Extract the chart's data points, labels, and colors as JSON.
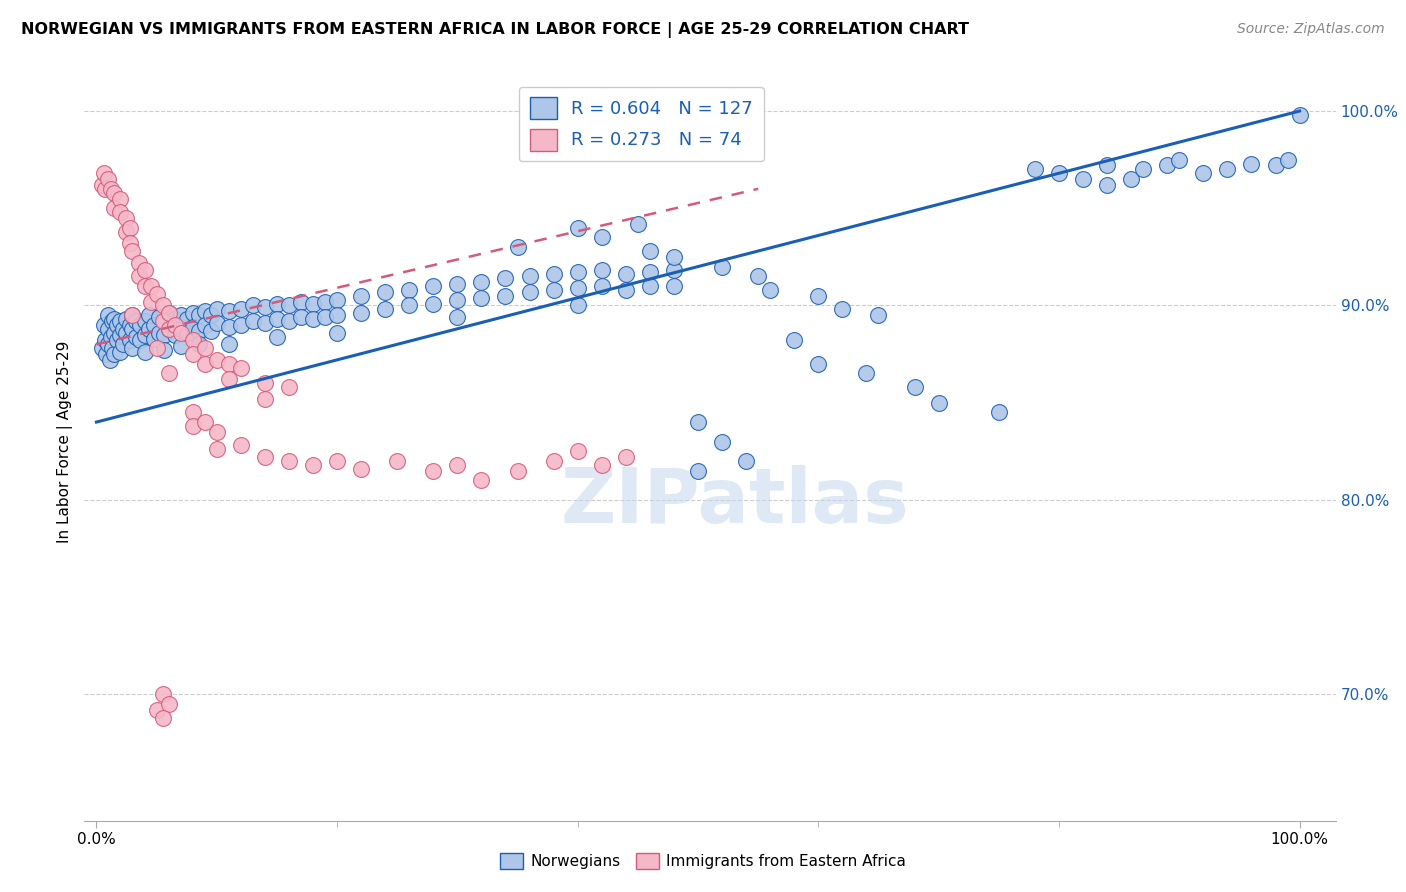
{
  "title": "NORWEGIAN VS IMMIGRANTS FROM EASTERN AFRICA IN LABOR FORCE | AGE 25-29 CORRELATION CHART",
  "source": "Source: ZipAtlas.com",
  "ylabel": "In Labor Force | Age 25-29",
  "xlim": [
    -0.01,
    1.03
  ],
  "ylim": [
    0.635,
    1.025
  ],
  "yticks": [
    0.7,
    0.8,
    0.9,
    1.0
  ],
  "ytick_labels": [
    "70.0%",
    "80.0%",
    "90.0%",
    "100.0%"
  ],
  "xtick_labels": [
    "0.0%",
    "100.0%"
  ],
  "legend_R_blue": "0.604",
  "legend_N_blue": "127",
  "legend_R_pink": "0.273",
  "legend_N_pink": "74",
  "blue_color": "#aec6e8",
  "pink_color": "#f5b8c8",
  "line_blue": "#1a5fb4",
  "line_pink": "#d45a7a",
  "blue_line_x": [
    0.0,
    1.0
  ],
  "blue_line_y": [
    0.84,
    1.0
  ],
  "pink_line_x": [
    0.0,
    0.55
  ],
  "pink_line_y": [
    0.88,
    0.96
  ],
  "blue_scatter": [
    [
      0.005,
      0.878
    ],
    [
      0.006,
      0.89
    ],
    [
      0.007,
      0.882
    ],
    [
      0.008,
      0.875
    ],
    [
      0.01,
      0.88
    ],
    [
      0.01,
      0.888
    ],
    [
      0.01,
      0.895
    ],
    [
      0.011,
      0.872
    ],
    [
      0.012,
      0.884
    ],
    [
      0.013,
      0.892
    ],
    [
      0.013,
      0.878
    ],
    [
      0.015,
      0.886
    ],
    [
      0.015,
      0.893
    ],
    [
      0.015,
      0.875
    ],
    [
      0.017,
      0.882
    ],
    [
      0.017,
      0.89
    ],
    [
      0.02,
      0.885
    ],
    [
      0.02,
      0.892
    ],
    [
      0.02,
      0.876
    ],
    [
      0.022,
      0.888
    ],
    [
      0.022,
      0.88
    ],
    [
      0.025,
      0.886
    ],
    [
      0.025,
      0.893
    ],
    [
      0.028,
      0.89
    ],
    [
      0.028,
      0.882
    ],
    [
      0.03,
      0.888
    ],
    [
      0.03,
      0.895
    ],
    [
      0.03,
      0.878
    ],
    [
      0.033,
      0.892
    ],
    [
      0.033,
      0.884
    ],
    [
      0.036,
      0.89
    ],
    [
      0.036,
      0.882
    ],
    [
      0.04,
      0.892
    ],
    [
      0.04,
      0.885
    ],
    [
      0.04,
      0.876
    ],
    [
      0.044,
      0.888
    ],
    [
      0.044,
      0.895
    ],
    [
      0.048,
      0.89
    ],
    [
      0.048,
      0.883
    ],
    [
      0.052,
      0.894
    ],
    [
      0.052,
      0.886
    ],
    [
      0.056,
      0.892
    ],
    [
      0.056,
      0.885
    ],
    [
      0.056,
      0.877
    ],
    [
      0.06,
      0.896
    ],
    [
      0.06,
      0.888
    ],
    [
      0.065,
      0.893
    ],
    [
      0.065,
      0.885
    ],
    [
      0.07,
      0.895
    ],
    [
      0.07,
      0.888
    ],
    [
      0.07,
      0.879
    ],
    [
      0.075,
      0.893
    ],
    [
      0.075,
      0.886
    ],
    [
      0.08,
      0.896
    ],
    [
      0.08,
      0.889
    ],
    [
      0.085,
      0.895
    ],
    [
      0.085,
      0.887
    ],
    [
      0.085,
      0.88
    ],
    [
      0.09,
      0.897
    ],
    [
      0.09,
      0.89
    ],
    [
      0.095,
      0.895
    ],
    [
      0.095,
      0.887
    ],
    [
      0.1,
      0.898
    ],
    [
      0.1,
      0.891
    ],
    [
      0.11,
      0.897
    ],
    [
      0.11,
      0.889
    ],
    [
      0.11,
      0.88
    ],
    [
      0.12,
      0.898
    ],
    [
      0.12,
      0.89
    ],
    [
      0.13,
      0.9
    ],
    [
      0.13,
      0.892
    ],
    [
      0.14,
      0.899
    ],
    [
      0.14,
      0.891
    ],
    [
      0.15,
      0.901
    ],
    [
      0.15,
      0.893
    ],
    [
      0.15,
      0.884
    ],
    [
      0.16,
      0.9
    ],
    [
      0.16,
      0.892
    ],
    [
      0.17,
      0.902
    ],
    [
      0.17,
      0.894
    ],
    [
      0.18,
      0.901
    ],
    [
      0.18,
      0.893
    ],
    [
      0.19,
      0.902
    ],
    [
      0.19,
      0.894
    ],
    [
      0.2,
      0.903
    ],
    [
      0.2,
      0.895
    ],
    [
      0.2,
      0.886
    ],
    [
      0.22,
      0.905
    ],
    [
      0.22,
      0.896
    ],
    [
      0.24,
      0.907
    ],
    [
      0.24,
      0.898
    ],
    [
      0.26,
      0.908
    ],
    [
      0.26,
      0.9
    ],
    [
      0.28,
      0.91
    ],
    [
      0.28,
      0.901
    ],
    [
      0.3,
      0.911
    ],
    [
      0.3,
      0.903
    ],
    [
      0.3,
      0.894
    ],
    [
      0.32,
      0.912
    ],
    [
      0.32,
      0.904
    ],
    [
      0.34,
      0.914
    ],
    [
      0.34,
      0.905
    ],
    [
      0.36,
      0.915
    ],
    [
      0.36,
      0.907
    ],
    [
      0.38,
      0.916
    ],
    [
      0.38,
      0.908
    ],
    [
      0.4,
      0.917
    ],
    [
      0.4,
      0.909
    ],
    [
      0.4,
      0.9
    ],
    [
      0.42,
      0.918
    ],
    [
      0.42,
      0.91
    ],
    [
      0.44,
      0.916
    ],
    [
      0.44,
      0.908
    ],
    [
      0.46,
      0.917
    ],
    [
      0.46,
      0.91
    ],
    [
      0.48,
      0.918
    ],
    [
      0.48,
      0.91
    ],
    [
      0.35,
      0.93
    ],
    [
      0.4,
      0.94
    ],
    [
      0.42,
      0.935
    ],
    [
      0.45,
      0.942
    ],
    [
      0.46,
      0.928
    ],
    [
      0.48,
      0.925
    ],
    [
      0.5,
      0.84
    ],
    [
      0.52,
      0.83
    ],
    [
      0.54,
      0.82
    ],
    [
      0.52,
      0.92
    ],
    [
      0.55,
      0.915
    ],
    [
      0.56,
      0.908
    ],
    [
      0.5,
      0.815
    ],
    [
      0.6,
      0.905
    ],
    [
      0.62,
      0.898
    ],
    [
      0.65,
      0.895
    ],
    [
      0.58,
      0.882
    ],
    [
      0.6,
      0.87
    ],
    [
      0.64,
      0.865
    ],
    [
      0.68,
      0.858
    ],
    [
      0.7,
      0.85
    ],
    [
      0.75,
      0.845
    ],
    [
      0.78,
      0.97
    ],
    [
      0.8,
      0.968
    ],
    [
      0.82,
      0.965
    ],
    [
      0.84,
      0.962
    ],
    [
      0.84,
      0.972
    ],
    [
      0.86,
      0.965
    ],
    [
      0.87,
      0.97
    ],
    [
      0.89,
      0.972
    ],
    [
      0.9,
      0.975
    ],
    [
      0.92,
      0.968
    ],
    [
      0.94,
      0.97
    ],
    [
      0.96,
      0.973
    ],
    [
      0.98,
      0.972
    ],
    [
      0.99,
      0.975
    ],
    [
      1.0,
      0.998
    ]
  ],
  "pink_scatter": [
    [
      0.005,
      0.962
    ],
    [
      0.006,
      0.968
    ],
    [
      0.007,
      0.96
    ],
    [
      0.01,
      0.965
    ],
    [
      0.012,
      0.96
    ],
    [
      0.015,
      0.958
    ],
    [
      0.015,
      0.95
    ],
    [
      0.02,
      0.955
    ],
    [
      0.02,
      0.948
    ],
    [
      0.025,
      0.945
    ],
    [
      0.025,
      0.938
    ],
    [
      0.028,
      0.94
    ],
    [
      0.028,
      0.932
    ],
    [
      0.03,
      0.928
    ],
    [
      0.035,
      0.922
    ],
    [
      0.035,
      0.915
    ],
    [
      0.04,
      0.918
    ],
    [
      0.04,
      0.91
    ],
    [
      0.045,
      0.91
    ],
    [
      0.045,
      0.902
    ],
    [
      0.05,
      0.906
    ],
    [
      0.055,
      0.9
    ],
    [
      0.055,
      0.892
    ],
    [
      0.06,
      0.896
    ],
    [
      0.06,
      0.888
    ],
    [
      0.065,
      0.89
    ],
    [
      0.07,
      0.886
    ],
    [
      0.08,
      0.882
    ],
    [
      0.08,
      0.875
    ],
    [
      0.09,
      0.878
    ],
    [
      0.09,
      0.87
    ],
    [
      0.1,
      0.872
    ],
    [
      0.11,
      0.87
    ],
    [
      0.11,
      0.862
    ],
    [
      0.12,
      0.868
    ],
    [
      0.14,
      0.86
    ],
    [
      0.14,
      0.852
    ],
    [
      0.16,
      0.858
    ],
    [
      0.03,
      0.895
    ],
    [
      0.05,
      0.878
    ],
    [
      0.06,
      0.865
    ],
    [
      0.08,
      0.845
    ],
    [
      0.08,
      0.838
    ],
    [
      0.09,
      0.84
    ],
    [
      0.1,
      0.835
    ],
    [
      0.1,
      0.826
    ],
    [
      0.12,
      0.828
    ],
    [
      0.14,
      0.822
    ],
    [
      0.16,
      0.82
    ],
    [
      0.18,
      0.818
    ],
    [
      0.2,
      0.82
    ],
    [
      0.22,
      0.816
    ],
    [
      0.25,
      0.82
    ],
    [
      0.28,
      0.815
    ],
    [
      0.3,
      0.818
    ],
    [
      0.32,
      0.81
    ],
    [
      0.35,
      0.815
    ],
    [
      0.38,
      0.82
    ],
    [
      0.4,
      0.825
    ],
    [
      0.42,
      0.818
    ],
    [
      0.44,
      0.822
    ],
    [
      0.05,
      0.692
    ],
    [
      0.055,
      0.7
    ],
    [
      0.06,
      0.695
    ],
    [
      0.055,
      0.688
    ]
  ]
}
